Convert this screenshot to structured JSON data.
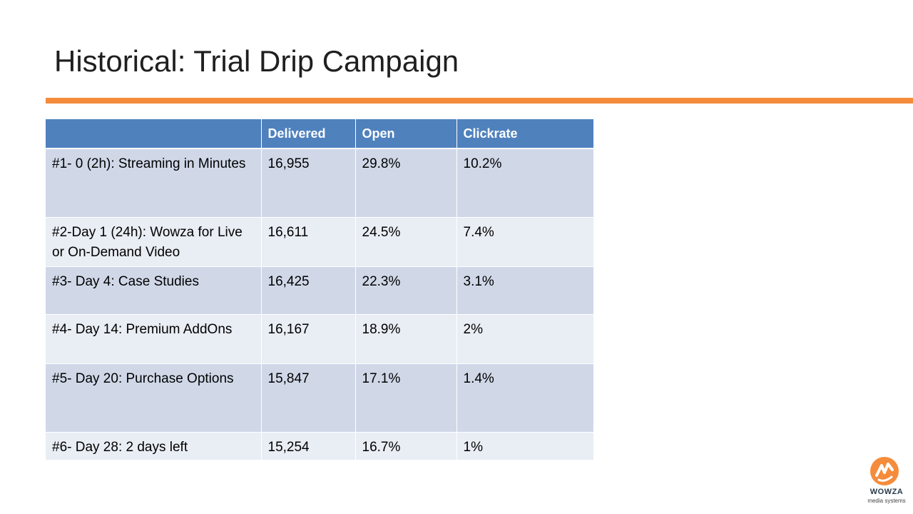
{
  "slide": {
    "title": "Historical: Trial Drip Campaign",
    "accent_color": "#F58C3B",
    "header_color": "#4F81BD"
  },
  "table": {
    "headers": [
      "",
      "Delivered",
      "Open",
      "Clickrate"
    ],
    "rows": [
      {
        "name": "#1- 0 (2h): Streaming in Minutes",
        "delivered": "16,955",
        "open": "29.8%",
        "clickrate": "10.2%"
      },
      {
        "name": "#2-Day 1 (24h): Wowza for Live or On-Demand Video",
        "delivered": "16,611",
        "open": "24.5%",
        "clickrate": "7.4%"
      },
      {
        "name": "#3- Day 4: Case Studies",
        "delivered": "16,425",
        "open": "22.3%",
        "clickrate": "3.1%"
      },
      {
        "name": "#4- Day 14: Premium AddOns",
        "delivered": "16,167",
        "open": "18.9%",
        "clickrate": "2%"
      },
      {
        "name": "#5- Day 20:  Purchase Options",
        "delivered": "15,847",
        "open": "17.1%",
        "clickrate": "1.4%"
      },
      {
        "name": "#6- Day 28: 2 days left",
        "delivered": "15,254",
        "open": "16.7%",
        "clickrate": "1%"
      }
    ]
  },
  "logo": {
    "brand": "WOWZA",
    "tagline": "media systems",
    "icon": "wowza-logo-icon"
  }
}
